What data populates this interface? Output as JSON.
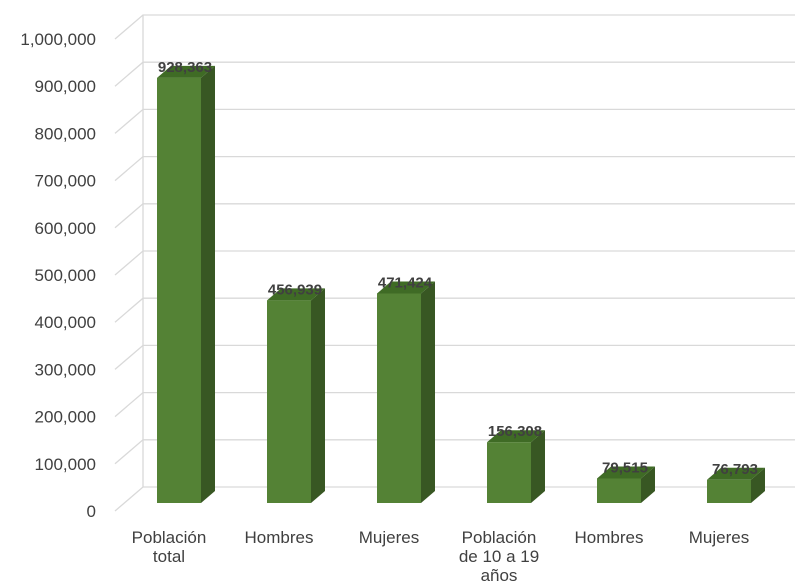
{
  "chart_data": {
    "type": "bar",
    "style": "3d-column",
    "categories": [
      [
        "Población",
        "total"
      ],
      [
        "Hombres"
      ],
      [
        "Mujeres"
      ],
      [
        "Población",
        "de 10 a 19",
        "años"
      ],
      [
        "Hombres"
      ],
      [
        "Mujeres"
      ]
    ],
    "values": [
      928363,
      456939,
      471424,
      156308,
      79515,
      76793
    ],
    "data_labels": [
      "928,363",
      "456,939",
      "471,424",
      "156,308",
      "79,515",
      "76,793"
    ],
    "y_ticks": [
      "0",
      "100,000",
      "200,000",
      "300,000",
      "400,000",
      "500,000",
      "600,000",
      "700,000",
      "800,000",
      "900,000",
      "1,000,000"
    ],
    "ylim": [
      0,
      1000000
    ],
    "title": "",
    "xlabel": "",
    "ylabel": "",
    "grid": true,
    "legend": "none",
    "colors": {
      "bar_front": "#548235",
      "bar_side": "#385723",
      "bar_top": "#3f6b25",
      "grid": "#d9d9d9",
      "text": "#404040"
    }
  }
}
